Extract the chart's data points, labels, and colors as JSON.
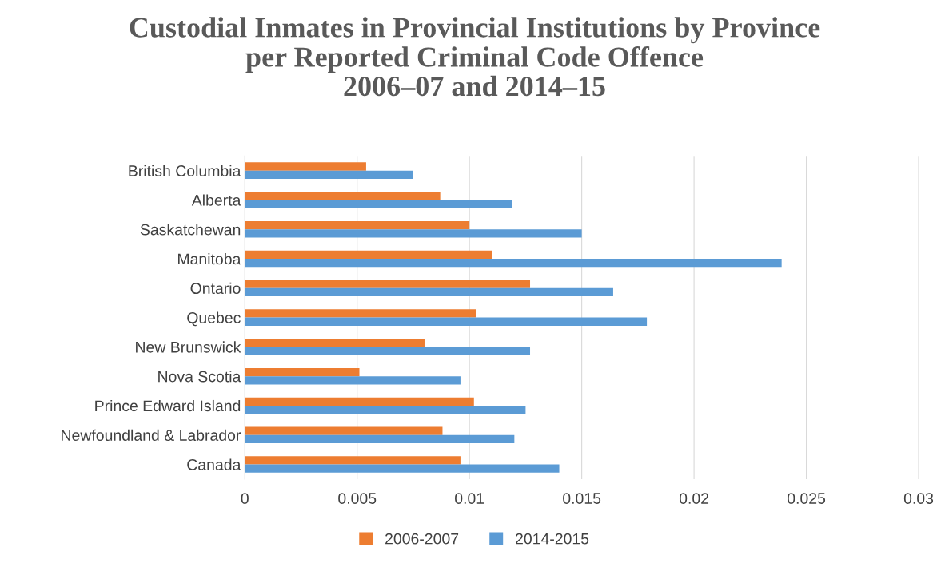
{
  "chart_data": {
    "type": "bar",
    "orientation": "horizontal",
    "title": "Custodial Inmates in Provincial Institutions by Province\nper Reported Criminal Code Offence\n2006–07 and 2014–15",
    "categories": [
      "British Columbia",
      "Alberta",
      "Saskatchewan",
      "Manitoba",
      "Ontario",
      "Quebec",
      "New Brunswick",
      "Nova Scotia",
      "Prince Edward Island",
      "Newfoundland & Labrador",
      "Canada"
    ],
    "series": [
      {
        "name": "2006-2007",
        "color": "#ed7d31",
        "values": [
          0.0054,
          0.0087,
          0.01,
          0.011,
          0.0127,
          0.0103,
          0.008,
          0.0051,
          0.0102,
          0.0088,
          0.0096
        ]
      },
      {
        "name": "2014-2015",
        "color": "#5b9bd5",
        "values": [
          0.0075,
          0.0119,
          0.015,
          0.0239,
          0.0164,
          0.0179,
          0.0127,
          0.0096,
          0.0125,
          0.012,
          0.014
        ]
      }
    ],
    "xlim": [
      0,
      0.03
    ],
    "xticks": [
      0,
      0.005,
      0.01,
      0.015,
      0.02,
      0.025,
      0.03
    ],
    "grid": "x",
    "legend": "bottom"
  }
}
